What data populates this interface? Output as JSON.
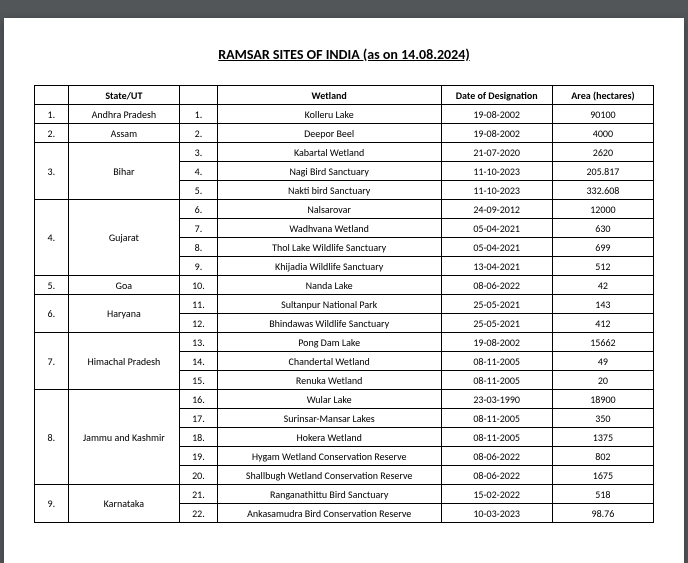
{
  "title": "RAMSAR SITES OF INDIA (as on 14.08.2024)",
  "headers": {
    "state": "State/UT",
    "wetland": "Wetland",
    "date": "Date of Designation",
    "area": "Area (hectares)"
  },
  "groups": [
    {
      "idx": "1.",
      "state": "Andhra Pradesh",
      "rows": [
        {
          "n": "1.",
          "wetland": "Kolleru Lake",
          "date": "19-08-2002",
          "area": "90100"
        }
      ]
    },
    {
      "idx": "2.",
      "state": "Assam",
      "rows": [
        {
          "n": "2.",
          "wetland": "Deepor Beel",
          "date": "19-08-2002",
          "area": "4000"
        }
      ]
    },
    {
      "idx": "3.",
      "state": "Bihar",
      "rows": [
        {
          "n": "3.",
          "wetland": "Kabartal Wetland",
          "date": "21-07-2020",
          "area": "2620"
        },
        {
          "n": "4.",
          "wetland": "Nagi Bird Sanctuary",
          "date": "11-10-2023",
          "area": "205.817"
        },
        {
          "n": "5.",
          "wetland": "Nakti bird Sanctuary",
          "date": "11-10-2023",
          "area": "332.608"
        }
      ]
    },
    {
      "idx": "4.",
      "state": "Gujarat",
      "rows": [
        {
          "n": "6.",
          "wetland": "Nalsarovar",
          "date": "24-09-2012",
          "area": "12000"
        },
        {
          "n": "7.",
          "wetland": "Wadhvana Wetland",
          "date": "05-04-2021",
          "area": "630"
        },
        {
          "n": "8.",
          "wetland": "Thol Lake Wildlife Sanctuary",
          "date": "05-04-2021",
          "area": "699"
        },
        {
          "n": "9.",
          "wetland": "Khijadia Wildlife Sanctuary",
          "date": "13-04-2021",
          "area": "512"
        }
      ]
    },
    {
      "idx": "5.",
      "state": "Goa",
      "rows": [
        {
          "n": "10.",
          "wetland": "Nanda Lake",
          "date": "08-06-2022",
          "area": "42"
        }
      ]
    },
    {
      "idx": "6.",
      "state": "Haryana",
      "rows": [
        {
          "n": "11.",
          "wetland": "Sultanpur National Park",
          "date": "25-05-2021",
          "area": "143"
        },
        {
          "n": "12.",
          "wetland": "Bhindawas Wildlife Sanctuary",
          "date": "25-05-2021",
          "area": "412"
        }
      ]
    },
    {
      "idx": "7.",
      "state": "Himachal Pradesh",
      "rows": [
        {
          "n": "13.",
          "wetland": "Pong Dam Lake",
          "date": "19-08-2002",
          "area": "15662"
        },
        {
          "n": "14.",
          "wetland": "Chandertal Wetland",
          "date": "08-11-2005",
          "area": "49"
        },
        {
          "n": "15.",
          "wetland": "Renuka Wetland",
          "date": "08-11-2005",
          "area": "20"
        }
      ]
    },
    {
      "idx": "8.",
      "state": "Jammu and Kashmir",
      "rows": [
        {
          "n": "16.",
          "wetland": "Wular Lake",
          "date": "23-03-1990",
          "area": "18900"
        },
        {
          "n": "17.",
          "wetland": "Surinsar-Mansar Lakes",
          "date": "08-11-2005",
          "area": "350"
        },
        {
          "n": "18.",
          "wetland": "Hokera Wetland",
          "date": "08-11-2005",
          "area": "1375"
        },
        {
          "n": "19.",
          "wetland": "Hygam Wetland Conservation Reserve",
          "date": "08-06-2022",
          "area": "802"
        },
        {
          "n": "20.",
          "wetland": "Shallbugh Wetland Conservation Reserve",
          "date": "08-06-2022",
          "area": "1675"
        }
      ]
    },
    {
      "idx": "9.",
      "state": "Karnataka",
      "rows": [
        {
          "n": "21.",
          "wetland": "Ranganathittu Bird Sanctuary",
          "date": "15-02-2022",
          "area": "518"
        },
        {
          "n": "22.",
          "wetland": "Ankasamudra Bird Conservation Reserve",
          "date": "10-03-2023",
          "area": "98.76"
        }
      ]
    }
  ]
}
